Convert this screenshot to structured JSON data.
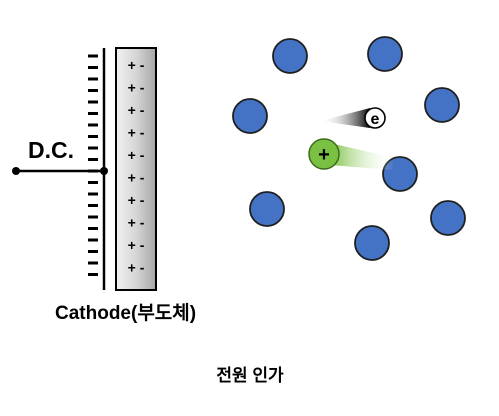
{
  "labels": {
    "power": "D.C.",
    "cathode": "Cathode(부도체)",
    "caption": "전원 인가",
    "electron_symbol": "e",
    "ion_symbol": "+"
  },
  "cathode": {
    "left_charges": [
      "-",
      "-",
      "-",
      "-",
      "-",
      "-",
      "-",
      "-",
      "-",
      "-",
      "-",
      "-",
      "-",
      "-",
      "-",
      "-",
      "-",
      "-",
      "-",
      "-"
    ],
    "inner_rows": [
      "+ -",
      "+ -",
      "+ -",
      "+ -",
      "+ -",
      "+ -",
      "+ -",
      "+ -",
      "+ -",
      "+ -"
    ]
  },
  "colors": {
    "atom": "#4472C4",
    "ion": "#7AC143",
    "electron_trail": "#000000",
    "cathode_fill": "#D9D9D9"
  },
  "atom_count": 8
}
